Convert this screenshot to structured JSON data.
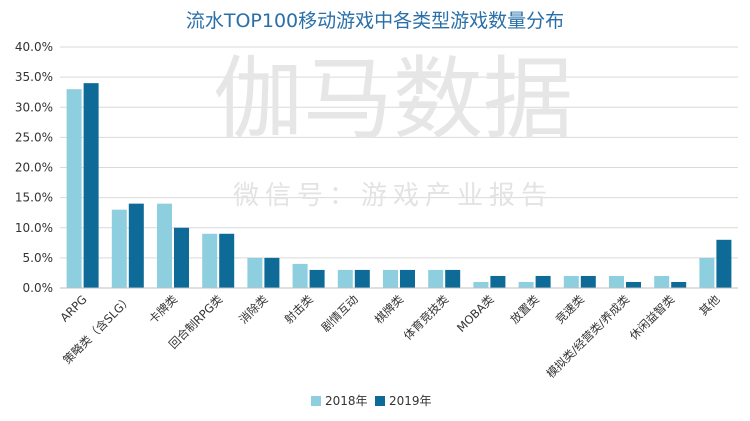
{
  "watermark": {
    "main": "伽马数据",
    "sub": "微信号：游戏产业报告"
  },
  "chart_data": {
    "type": "bar",
    "title": "流水TOP100移动游戏中各类型游戏数量分布",
    "categories": [
      "ARPG",
      "策略类（含SLG）",
      "卡牌类",
      "回合制RPG类",
      "消除类",
      "射击类",
      "剧情互动",
      "棋牌类",
      "体育竞技类",
      "MOBA类",
      "放置类",
      "竞速类",
      "模拟类/经营类/养成类",
      "休闲益智类",
      "其他"
    ],
    "series": [
      {
        "name": "2018年",
        "color": "#8ecfdf",
        "values": [
          33,
          13,
          14,
          9,
          5,
          4,
          3,
          3,
          3,
          1,
          1,
          2,
          2,
          2,
          5
        ]
      },
      {
        "name": "2019年",
        "color": "#0e6a96",
        "values": [
          34,
          14,
          10,
          9,
          5,
          3,
          3,
          3,
          3,
          2,
          2,
          2,
          1,
          1,
          8
        ]
      }
    ],
    "ylim": [
      0,
      40
    ],
    "yticks": [
      "0.0%",
      "5.0%",
      "10.0%",
      "15.0%",
      "20.0%",
      "25.0%",
      "30.0%",
      "35.0%",
      "40.0%"
    ],
    "grid": true,
    "legend_position": "bottom"
  }
}
